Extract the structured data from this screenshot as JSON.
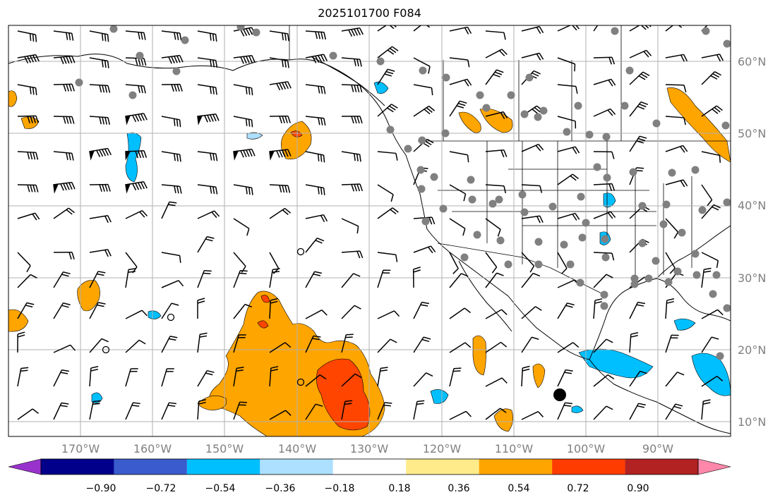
{
  "title": "2025101700 F084",
  "lat_labels": [
    "60°N",
    "50°N",
    "40°N",
    "30°N",
    "20°N",
    "10°N"
  ],
  "lon_labels": [
    "170°W",
    "160°W",
    "150°W",
    "140°W",
    "130°W",
    "120°W",
    "110°W",
    "100°W",
    "90°W"
  ],
  "colorbar": {
    "colors": [
      "#9932CC",
      "#00008B",
      "#3A5BCD",
      "#00BFFF",
      "#ADDFFF",
      "#FFFFFF",
      "#FFEB8A",
      "#FFA500",
      "#FF3C00",
      "#B22222",
      "#FF88AA"
    ],
    "tick_labels": [
      "−0.90",
      "−0.72",
      "−0.54",
      "−0.36",
      "−0.18",
      "0.18",
      "0.36",
      "0.54",
      "0.72",
      "0.90"
    ]
  },
  "map": {
    "extent": {
      "lon": [
        -180,
        -80
      ],
      "lat": [
        8,
        65
      ]
    },
    "gridlines": true,
    "fill_colors": {
      "orange": "#FFA500",
      "red": "#FF4500",
      "blue": "#00BFFF",
      "light_blue": "#ADDFFF"
    },
    "markers": {
      "station_dot_color": "#808080",
      "large_dot_color": "#000000"
    }
  }
}
